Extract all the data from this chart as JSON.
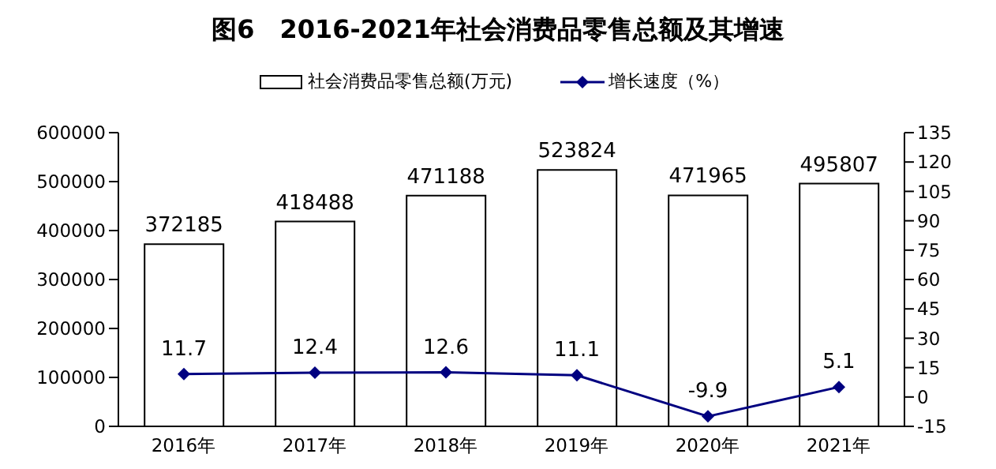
{
  "chart_data": {
    "type": "bar",
    "title": "图6　2016-2021年社会消费品零售总额及其增速",
    "categories": [
      "2016年",
      "2017年",
      "2018年",
      "2019年",
      "2020年",
      "2021年"
    ],
    "series": [
      {
        "name": "社会消费品零售总额(万元)",
        "color": "#ffffff",
        "values": [
          372185,
          418488,
          471188,
          523824,
          471965,
          495807
        ]
      },
      {
        "name": "增长速度（%）",
        "type": "line",
        "axis": "y2",
        "color": "#000080",
        "values": [
          11.7,
          12.4,
          12.6,
          11.1,
          -9.9,
          5.1
        ]
      }
    ],
    "ylim": [
      0,
      600000
    ],
    "yticks": [
      0,
      100000,
      200000,
      300000,
      400000,
      500000,
      600000
    ],
    "y2lim": [
      -15,
      135
    ],
    "y2ticks": [
      -15,
      0,
      15,
      30,
      45,
      60,
      75,
      90,
      105,
      120,
      135
    ],
    "data_labels": true,
    "legend": "top",
    "marker": "diamond",
    "grid": false
  }
}
